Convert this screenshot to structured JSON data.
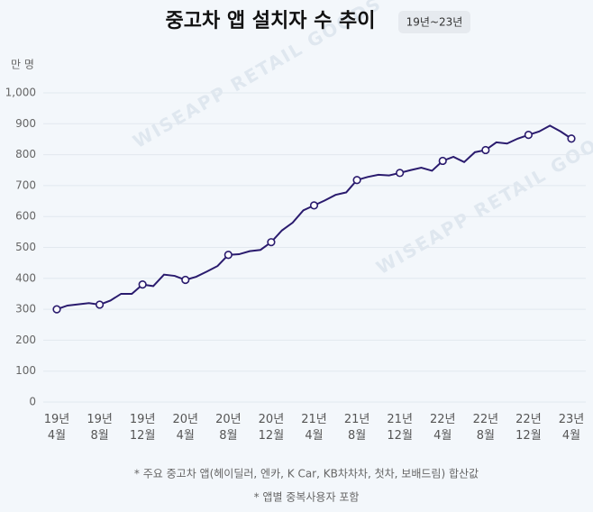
{
  "chart_data": {
    "type": "line",
    "title": "중고차 앱 설치자 수 추이",
    "period": "19년~23년",
    "y_unit_label": "만 명",
    "watermark": "WISEAPP RETAIL GOODS",
    "notes": [
      "* 주요 중고차 앱(헤이딜러, 엔카, K Car, KB차차차, 첫차, 보배드림) 합산값",
      "* 앱별 중복사용자 포함"
    ],
    "categories": [
      "19년 4월",
      null,
      null,
      null,
      "19년 8월",
      null,
      null,
      null,
      "19년 12월",
      null,
      null,
      null,
      "20년 4월",
      null,
      null,
      null,
      "20년 8월",
      null,
      null,
      null,
      "20년 12월",
      null,
      null,
      null,
      "21년 4월",
      null,
      null,
      null,
      "21년 8월",
      null,
      null,
      null,
      "21년 12월",
      null,
      null,
      null,
      "22년 4월",
      null,
      null,
      null,
      "22년 8월",
      null,
      null,
      null,
      "22년 12월",
      null,
      null,
      null,
      "23년 4월"
    ],
    "series": [
      {
        "color": "#2a1b6e",
        "values": [
          300,
          312,
          316,
          320,
          315,
          328,
          350,
          350,
          380,
          375,
          412,
          408,
          395,
          405,
          422,
          440,
          476,
          478,
          488,
          492,
          517,
          555,
          580,
          620,
          636,
          652,
          670,
          678,
          718,
          728,
          735,
          733,
          741,
          750,
          758,
          748,
          780,
          793,
          776,
          808,
          815,
          840,
          836,
          852,
          864,
          875,
          894,
          875,
          852
        ]
      }
    ],
    "ylim": [
      0,
      1000
    ],
    "yticks": [
      0,
      100,
      200,
      300,
      400,
      500,
      600,
      700,
      800,
      900,
      {
        "value": 1000,
        "label": "1,000"
      }
    ],
    "grid": true
  }
}
